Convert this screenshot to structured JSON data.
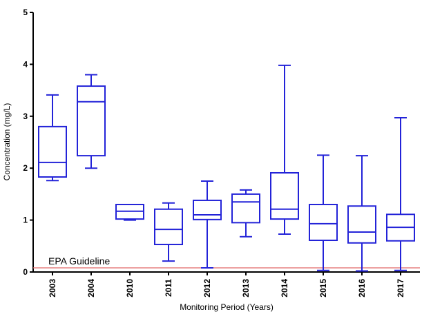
{
  "chart_data": {
    "type": "box",
    "x_label": "Monitoring Period (Years)",
    "y_label": "Concentration (mg/L)",
    "categories": [
      "2003",
      "2004",
      "2010",
      "2011",
      "2012",
      "2013",
      "2014",
      "2015",
      "2016",
      "2017"
    ],
    "min": [
      1.76,
      2.0,
      1.0,
      0.21,
      0.08,
      0.68,
      0.73,
      0.03,
      0.02,
      0.03
    ],
    "q1": [
      1.83,
      2.24,
      1.02,
      0.53,
      1.01,
      0.95,
      1.02,
      0.61,
      0.56,
      0.6
    ],
    "median": [
      2.11,
      3.28,
      1.17,
      0.82,
      1.1,
      1.35,
      1.21,
      0.93,
      0.77,
      0.86
    ],
    "q3": [
      2.8,
      3.58,
      1.3,
      1.21,
      1.38,
      1.5,
      1.91,
      1.3,
      1.27,
      1.11
    ],
    "max": [
      3.41,
      3.8,
      1.3,
      1.33,
      1.75,
      1.58,
      3.98,
      2.25,
      2.24,
      2.97
    ],
    "color": "#2323d8",
    "ylim": [
      0,
      5
    ],
    "yticks": [
      0,
      1,
      2,
      3,
      4,
      5
    ],
    "grid": false,
    "reference_line": {
      "value": 0.08,
      "label": "EPA Guideline",
      "color": "#e06666"
    }
  }
}
